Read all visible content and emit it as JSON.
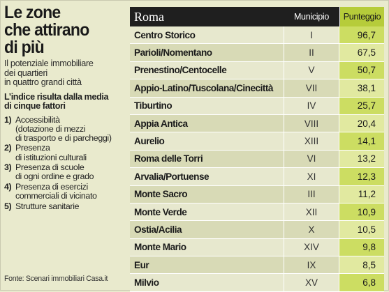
{
  "headline": [
    "Le zone",
    "che attirano",
    "di più"
  ],
  "subtitle": [
    "Il potenziale immobiliare",
    "dei quartieri",
    "in quattro grandi città"
  ],
  "intro": [
    "L’indice risulta dalla media",
    "di cinque fattori"
  ],
  "factors": [
    {
      "num": "1)",
      "lines": [
        "Accessibilità",
        "(dotazione di mezzi",
        "di trasporto e di parcheggi)"
      ]
    },
    {
      "num": "2)",
      "lines": [
        "Presenza",
        "di istituzioni culturali"
      ]
    },
    {
      "num": "3)",
      "lines": [
        "Presenza di scuole",
        "di ogni ordine e grado"
      ]
    },
    {
      "num": "4)",
      "lines": [
        "Presenza di esercizi",
        "commerciali di vicinato"
      ]
    },
    {
      "num": "5)",
      "lines": [
        "Strutture sanitarie"
      ]
    }
  ],
  "source": "Fonte: Scenari immobiliari Casa.it",
  "table": {
    "city": "Roma",
    "col_municipio": "Municipio",
    "col_punteggio": "Punteggio",
    "rows": [
      {
        "zone": "Centro Storico",
        "municipio": "I",
        "punteggio": "96,7"
      },
      {
        "zone": "Parioli/Nomentano",
        "municipio": "II",
        "punteggio": "67,5"
      },
      {
        "zone": "Prenestino/Centocelle",
        "municipio": "V",
        "punteggio": "50,7"
      },
      {
        "zone": "Appio-Latino/Tuscolana/Cinecittà",
        "municipio": "VII",
        "punteggio": "38,1"
      },
      {
        "zone": "Tiburtino",
        "municipio": "IV",
        "punteggio": "25,7"
      },
      {
        "zone": "Appia Antica",
        "municipio": "VIII",
        "punteggio": "20,4"
      },
      {
        "zone": "Aurelio",
        "municipio": "XIII",
        "punteggio": "14,1"
      },
      {
        "zone": "Roma delle Torri",
        "municipio": "VI",
        "punteggio": "13,2"
      },
      {
        "zone": "Arvalia/Portuense",
        "municipio": "XI",
        "punteggio": "12,3"
      },
      {
        "zone": "Monte Sacro",
        "municipio": "III",
        "punteggio": "11,2"
      },
      {
        "zone": "Monte Verde",
        "municipio": "XII",
        "punteggio": "10,9"
      },
      {
        "zone": "Ostia/Acilia",
        "municipio": "X",
        "punteggio": "10,5"
      },
      {
        "zone": "Monte Mario",
        "municipio": "XIV",
        "punteggio": "9,8"
      },
      {
        "zone": "Eur",
        "municipio": "IX",
        "punteggio": "8,5"
      },
      {
        "zone": "Milvio",
        "municipio": "XV",
        "punteggio": "6,8"
      }
    ]
  }
}
